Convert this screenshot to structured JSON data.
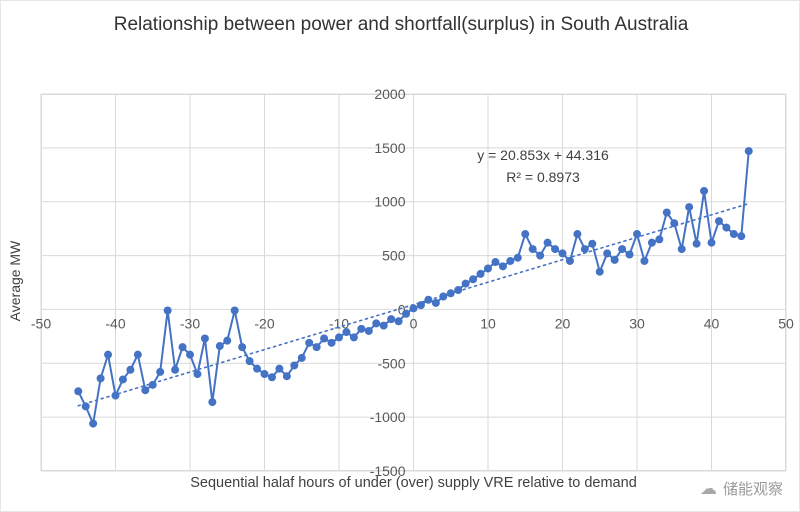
{
  "chart": {
    "title": "Relationship between power and shortfall(surplus) in South Australia",
    "annotation": {
      "equation": "y = 20.853x + 44.316",
      "r_squared": "R² = 0.8973"
    },
    "watermark": "储能观察",
    "watermark_icon": "☁"
  },
  "chart_data": {
    "type": "line",
    "title": "Relationship between power and shortfall(surplus) in South Australia",
    "xlabel": "Sequential halaf hours of under (over) supply VRE relative to demand",
    "ylabel": "Average MW",
    "xlim": [
      -50,
      50
    ],
    "ylim": [
      -1500,
      2000
    ],
    "x_ticks": [
      -50,
      -40,
      -30,
      -20,
      -10,
      0,
      10,
      20,
      30,
      40,
      50
    ],
    "y_ticks": [
      -1500,
      -1000,
      -500,
      0,
      500,
      1000,
      1500,
      2000
    ],
    "grid": true,
    "legend": "none",
    "grid_color": "#d9d9d9",
    "tick_color": "#595959",
    "marker_color": "#4472C4",
    "series": [
      {
        "name": "Average MW",
        "x": [
          -45,
          -44,
          -43,
          -42,
          -41,
          -40,
          -39,
          -38,
          -37,
          -36,
          -35,
          -34,
          -33,
          -32,
          -31,
          -30,
          -29,
          -28,
          -27,
          -26,
          -25,
          -24,
          -23,
          -22,
          -21,
          -20,
          -19,
          -18,
          -17,
          -16,
          -15,
          -14,
          -13,
          -12,
          -11,
          -10,
          -9,
          -8,
          -7,
          -6,
          -5,
          -4,
          -3,
          -2,
          -1,
          0,
          1,
          2,
          3,
          4,
          5,
          6,
          7,
          8,
          9,
          10,
          11,
          12,
          13,
          14,
          15,
          16,
          17,
          18,
          19,
          20,
          21,
          22,
          23,
          24,
          25,
          26,
          27,
          28,
          29,
          30,
          31,
          32,
          33,
          34,
          35,
          36,
          37,
          38,
          39,
          40,
          41,
          42,
          43,
          44,
          45
        ],
        "y": [
          -760,
          -900,
          -1060,
          -640,
          -420,
          -800,
          -650,
          -560,
          -420,
          -750,
          -700,
          -580,
          -10,
          -560,
          -350,
          -420,
          -600,
          -270,
          -860,
          -340,
          -290,
          -10,
          -350,
          -480,
          -550,
          -600,
          -630,
          -550,
          -620,
          -520,
          -450,
          -310,
          -350,
          -270,
          -310,
          -260,
          -210,
          -260,
          -180,
          -200,
          -130,
          -150,
          -90,
          -110,
          -40,
          10,
          40,
          90,
          60,
          120,
          150,
          180,
          240,
          280,
          330,
          380,
          440,
          400,
          450,
          480,
          700,
          560,
          500,
          620,
          560,
          520,
          450,
          700,
          560,
          610,
          350,
          520,
          460,
          560,
          510,
          700,
          450,
          620,
          650,
          900,
          800,
          560,
          950,
          610,
          1100,
          620,
          820,
          760,
          700,
          680,
          1470
        ]
      }
    ],
    "trendline": {
      "style": "dotted",
      "slope": 20.853,
      "intercept": 44.316,
      "equation": "y = 20.853x + 44.316",
      "r_squared": 0.8973,
      "x_range": [
        -45,
        45
      ]
    }
  }
}
